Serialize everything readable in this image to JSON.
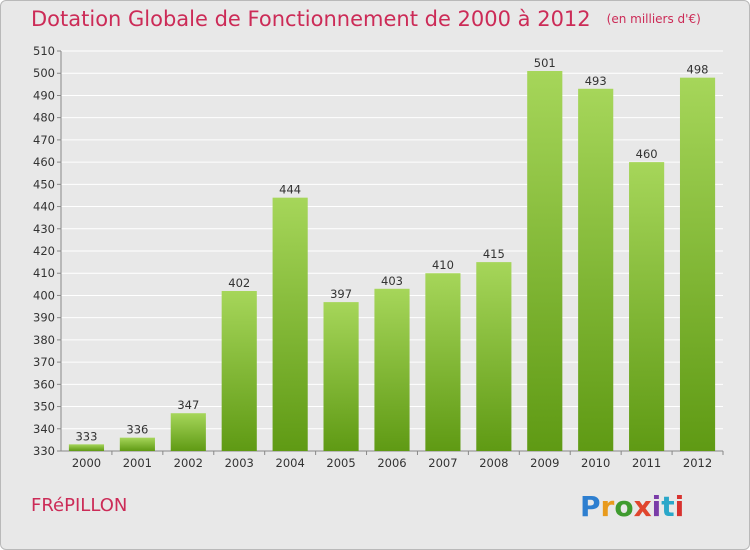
{
  "title": "Dotation Globale de Fonctionnement de 2000 à 2012",
  "subtitle": "(en milliers d'€)",
  "place": "FRéPILLON",
  "logo": {
    "text": "Proxiti",
    "letter_colors": [
      "#2e7fd0",
      "#e89a1c",
      "#3f9b2f",
      "#e0462e",
      "#7a3ca8",
      "#2aa7c9",
      "#d8322f"
    ]
  },
  "colors": {
    "title": "#cc2b57",
    "bar_light": "#a6d65a",
    "bar_dark": "#5f9a14",
    "background": "#e8e8e8",
    "grid": "#ffffff"
  },
  "chart_data": {
    "type": "bar",
    "title": "Dotation Globale de Fonctionnement de 2000 à 2012",
    "subtitle": "(en milliers d'€)",
    "categories": [
      "2000",
      "2001",
      "2002",
      "2003",
      "2004",
      "2005",
      "2006",
      "2007",
      "2008",
      "2009",
      "2010",
      "2011",
      "2012"
    ],
    "values": [
      333,
      336,
      347,
      402,
      444,
      397,
      403,
      410,
      415,
      501,
      493,
      460,
      498
    ],
    "data_labels": [
      "333",
      "336",
      "347",
      "402",
      "444",
      "397",
      "403",
      "410",
      "415",
      "501",
      "493",
      "460",
      "498"
    ],
    "ylim": [
      330,
      510
    ],
    "yticks": [
      330,
      340,
      350,
      360,
      370,
      380,
      390,
      400,
      410,
      420,
      430,
      440,
      450,
      460,
      470,
      480,
      490,
      500,
      510
    ],
    "xlabel": "",
    "ylabel": "",
    "grid": true,
    "legend": "none"
  }
}
